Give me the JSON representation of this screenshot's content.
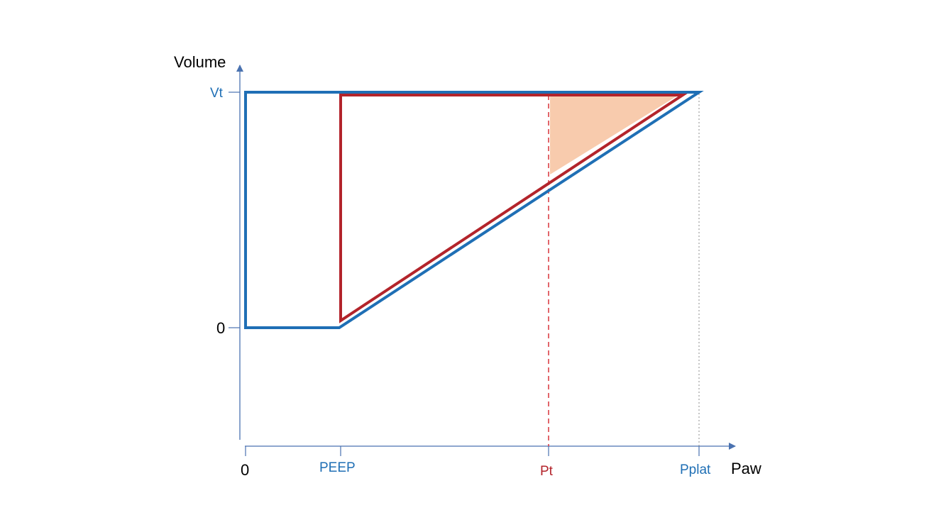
{
  "axes": {
    "y_label": "Volume",
    "x_label": "Paw",
    "y_ticks": {
      "vt": "Vt",
      "zero": "0"
    },
    "x_ticks": {
      "zero": "0",
      "peep": "PEEP",
      "pt": "Pt",
      "pplat": "Pplat"
    }
  },
  "colors": {
    "axis": "#4a72b0",
    "blue_loop": "#1f6fb5",
    "red_loop": "#b3242b",
    "shaded_area": "#f8cbad",
    "guide_gray": "#8c8c8c",
    "black_text": "#000000"
  }
}
